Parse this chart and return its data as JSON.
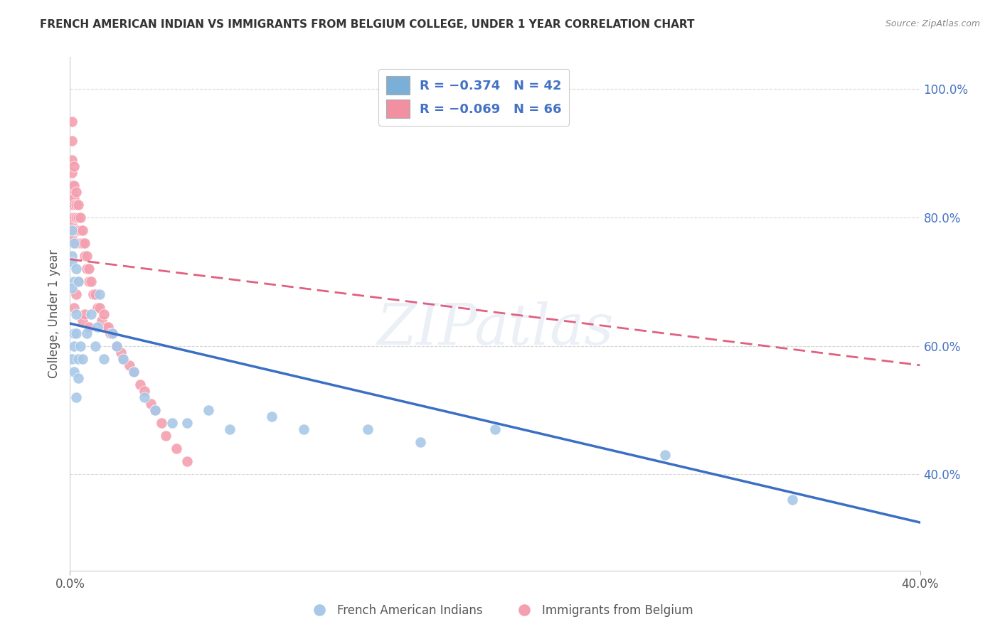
{
  "title": "FRENCH AMERICAN INDIAN VS IMMIGRANTS FROM BELGIUM COLLEGE, UNDER 1 YEAR CORRELATION CHART",
  "source": "Source: ZipAtlas.com",
  "ylabel": "College, Under 1 year",
  "blue_color": "#a8c8e8",
  "pink_color": "#f4a0b0",
  "blue_line_color": "#3a6fc4",
  "pink_line_color": "#e06080",
  "legend_blue_color": "#7ab0d8",
  "legend_pink_color": "#f090a0",
  "watermark": "ZIPatlas",
  "blue_scatter_x": [
    0.002,
    0.003,
    0.001,
    0.002,
    0.001,
    0.001,
    0.002,
    0.001,
    0.002,
    0.001,
    0.002,
    0.003,
    0.004,
    0.003,
    0.003,
    0.004,
    0.005,
    0.004,
    0.006,
    0.008,
    0.01,
    0.012,
    0.013,
    0.014,
    0.016,
    0.02,
    0.022,
    0.025,
    0.03,
    0.035,
    0.04,
    0.048,
    0.055,
    0.065,
    0.075,
    0.095,
    0.11,
    0.14,
    0.165,
    0.2,
    0.28,
    0.34
  ],
  "blue_scatter_y": [
    0.62,
    0.65,
    0.74,
    0.76,
    0.78,
    0.73,
    0.7,
    0.69,
    0.6,
    0.58,
    0.56,
    0.52,
    0.55,
    0.62,
    0.72,
    0.58,
    0.6,
    0.7,
    0.58,
    0.62,
    0.65,
    0.6,
    0.63,
    0.68,
    0.58,
    0.62,
    0.6,
    0.58,
    0.56,
    0.52,
    0.5,
    0.48,
    0.48,
    0.5,
    0.47,
    0.49,
    0.47,
    0.47,
    0.45,
    0.47,
    0.43,
    0.36
  ],
  "pink_scatter_x": [
    0.001,
    0.001,
    0.001,
    0.001,
    0.001,
    0.001,
    0.001,
    0.001,
    0.001,
    0.001,
    0.001,
    0.002,
    0.002,
    0.002,
    0.002,
    0.002,
    0.002,
    0.003,
    0.003,
    0.003,
    0.003,
    0.003,
    0.004,
    0.004,
    0.004,
    0.005,
    0.005,
    0.005,
    0.006,
    0.006,
    0.007,
    0.007,
    0.008,
    0.008,
    0.009,
    0.009,
    0.01,
    0.011,
    0.012,
    0.013,
    0.014,
    0.015,
    0.016,
    0.017,
    0.018,
    0.019,
    0.02,
    0.022,
    0.024,
    0.025,
    0.028,
    0.03,
    0.033,
    0.035,
    0.038,
    0.04,
    0.043,
    0.045,
    0.05,
    0.055,
    0.002,
    0.003,
    0.004,
    0.006,
    0.007,
    0.009
  ],
  "pink_scatter_y": [
    0.95,
    0.92,
    0.89,
    0.87,
    0.85,
    0.84,
    0.82,
    0.8,
    0.79,
    0.78,
    0.77,
    0.88,
    0.85,
    0.83,
    0.82,
    0.8,
    0.78,
    0.84,
    0.82,
    0.8,
    0.78,
    0.76,
    0.82,
    0.8,
    0.78,
    0.8,
    0.78,
    0.76,
    0.78,
    0.76,
    0.76,
    0.74,
    0.74,
    0.72,
    0.72,
    0.7,
    0.7,
    0.68,
    0.68,
    0.66,
    0.66,
    0.64,
    0.65,
    0.63,
    0.63,
    0.62,
    0.62,
    0.6,
    0.59,
    0.58,
    0.57,
    0.56,
    0.54,
    0.53,
    0.51,
    0.5,
    0.48,
    0.46,
    0.44,
    0.42,
    0.66,
    0.68,
    0.7,
    0.64,
    0.65,
    0.63
  ],
  "xlim": [
    0.0,
    0.4
  ],
  "ylim": [
    0.25,
    1.05
  ],
  "x_ticks": [
    0.0,
    0.4
  ],
  "x_tick_labels": [
    "0.0%",
    "40.0%"
  ],
  "y_ticks_right": [
    1.0,
    0.8,
    0.6,
    0.4
  ],
  "y_tick_labels_right": [
    "100.0%",
    "80.0%",
    "60.0%",
    "40.0%"
  ],
  "blue_trend_x": [
    0.0,
    0.4
  ],
  "blue_trend_y": [
    0.635,
    0.325
  ],
  "pink_trend_x": [
    0.0,
    0.4
  ],
  "pink_trend_y": [
    0.735,
    0.57
  ],
  "legend_blue_label": "R = −0.374   N = 42",
  "legend_pink_label": "R = −0.069   N = 66",
  "bottom_legend_blue": "French American Indians",
  "bottom_legend_pink": "Immigrants from Belgium"
}
